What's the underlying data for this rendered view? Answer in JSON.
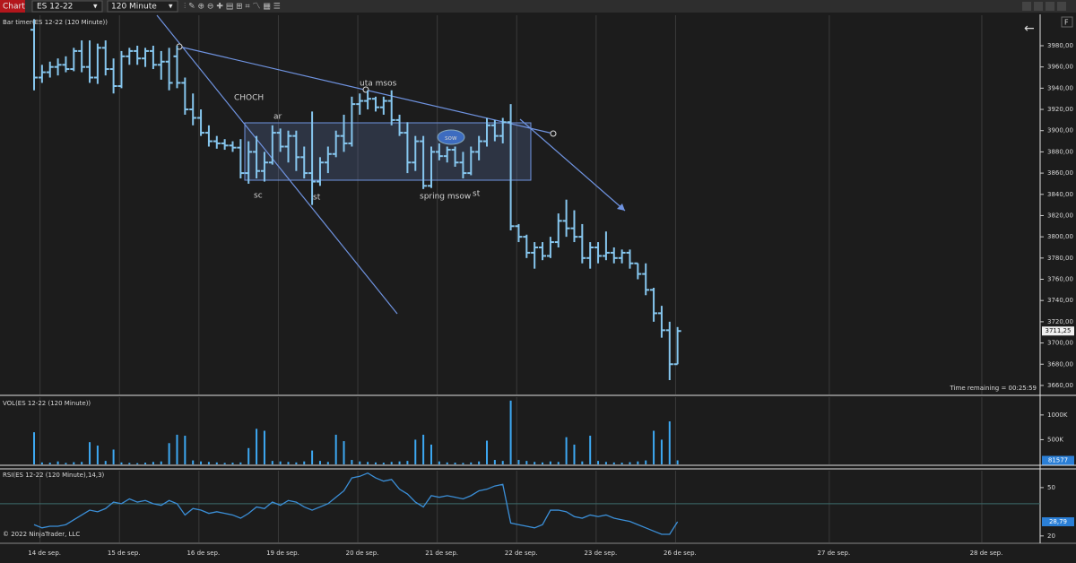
{
  "toolbar": {
    "menu": "Chart",
    "instrument": "ES 12-22",
    "interval": "120 Minute"
  },
  "chart_data": [
    {
      "type": "ohlc",
      "title": "Bar timer(ES 12-22 (120 Minute))",
      "color": "#86c6ee",
      "grid": "x",
      "ohlc": [
        [
          3995,
          4005,
          3938,
          3950
        ],
        [
          3950,
          3962,
          3945,
          3955
        ],
        [
          3955,
          3965,
          3950,
          3960
        ],
        [
          3960,
          3968,
          3952,
          3962
        ],
        [
          3962,
          3970,
          3955,
          3958
        ],
        [
          3958,
          3978,
          3956,
          3975
        ],
        [
          3975,
          3985,
          3955,
          3960
        ],
        [
          3960,
          3985,
          3945,
          3950
        ],
        [
          3950,
          3982,
          3944,
          3978
        ],
        [
          3978,
          3985,
          3952,
          3958
        ],
        [
          3958,
          3968,
          3935,
          3942
        ],
        [
          3942,
          3975,
          3940,
          3970
        ],
        [
          3970,
          3978,
          3962,
          3975
        ],
        [
          3975,
          3980,
          3962,
          3968
        ],
        [
          3968,
          3978,
          3960,
          3975
        ],
        [
          3975,
          3980,
          3958,
          3962
        ],
        [
          3962,
          3975,
          3948,
          3965
        ],
        [
          3965,
          3978,
          3938,
          3945
        ],
        [
          3970,
          3980,
          3940,
          3945
        ],
        [
          3945,
          3950,
          3915,
          3920
        ],
        [
          3920,
          3935,
          3905,
          3912
        ],
        [
          3912,
          3920,
          3895,
          3898
        ],
        [
          3898,
          3905,
          3885,
          3890
        ],
        [
          3890,
          3895,
          3883,
          3888
        ],
        [
          3888,
          3892,
          3882,
          3886
        ],
        [
          3886,
          3890,
          3880,
          3884
        ],
        [
          3884,
          3892,
          3855,
          3860
        ],
        [
          3860,
          3890,
          3850,
          3880
        ],
        [
          3880,
          3895,
          3855,
          3862
        ],
        [
          3862,
          3880,
          3852,
          3870
        ],
        [
          3870,
          3905,
          3868,
          3898
        ],
        [
          3898,
          3902,
          3880,
          3885
        ],
        [
          3885,
          3900,
          3870,
          3895
        ],
        [
          3895,
          3900,
          3862,
          3875
        ],
        [
          3875,
          3885,
          3855,
          3860
        ],
        [
          3860,
          3918,
          3830,
          3852
        ],
        [
          3852,
          3875,
          3848,
          3870
        ],
        [
          3870,
          3885,
          3860,
          3878
        ],
        [
          3878,
          3900,
          3875,
          3895
        ],
        [
          3895,
          3915,
          3880,
          3888
        ],
        [
          3888,
          3932,
          3885,
          3925
        ],
        [
          3925,
          3935,
          3915,
          3928
        ],
        [
          3928,
          3938,
          3920,
          3930
        ],
        [
          3930,
          3932,
          3918,
          3922
        ],
        [
          3922,
          3932,
          3915,
          3928
        ],
        [
          3928,
          3938,
          3905,
          3910
        ],
        [
          3910,
          3915,
          3895,
          3898
        ],
        [
          3898,
          3908,
          3860,
          3870
        ],
        [
          3870,
          3895,
          3862,
          3890
        ],
        [
          3890,
          3895,
          3845,
          3848
        ],
        [
          3848,
          3885,
          3846,
          3880
        ],
        [
          3880,
          3888,
          3872,
          3876
        ],
        [
          3876,
          3885,
          3870,
          3882
        ],
        [
          3882,
          3885,
          3866,
          3870
        ],
        [
          3870,
          3880,
          3855,
          3860
        ],
        [
          3860,
          3885,
          3858,
          3880
        ],
        [
          3880,
          3895,
          3872,
          3890
        ],
        [
          3890,
          3912,
          3885,
          3905
        ],
        [
          3905,
          3910,
          3890,
          3895
        ],
        [
          3895,
          3912,
          3888,
          3908
        ],
        [
          3908,
          3925,
          3806,
          3810
        ],
        [
          3810,
          3812,
          3795,
          3800
        ],
        [
          3800,
          3802,
          3780,
          3785
        ],
        [
          3785,
          3795,
          3770,
          3790
        ],
        [
          3790,
          3795,
          3778,
          3782
        ],
        [
          3782,
          3800,
          3780,
          3795
        ],
        [
          3795,
          3822,
          3790,
          3815
        ],
        [
          3815,
          3835,
          3800,
          3808
        ],
        [
          3808,
          3825,
          3795,
          3800
        ],
        [
          3800,
          3812,
          3775,
          3780
        ],
        [
          3780,
          3795,
          3770,
          3790
        ],
        [
          3790,
          3795,
          3775,
          3782
        ],
        [
          3782,
          3805,
          3778,
          3785
        ],
        [
          3785,
          3790,
          3775,
          3780
        ],
        [
          3780,
          3788,
          3775,
          3785
        ],
        [
          3785,
          3788,
          3770,
          3775
        ],
        [
          3775,
          3775,
          3760,
          3765
        ],
        [
          3765,
          3775,
          3745,
          3750
        ],
        [
          3750,
          3752,
          3720,
          3728
        ],
        [
          3728,
          3735,
          3705,
          3712
        ],
        [
          3712,
          3720,
          3665,
          3680
        ],
        [
          3680,
          3715,
          3680,
          3711.25
        ]
      ],
      "ylim": [
        3651.5,
        4008.7
      ],
      "yticks": [
        {
          "value": 3660,
          "label": "3660,00"
        },
        {
          "value": 3680,
          "label": "3680,00"
        },
        {
          "value": 3700,
          "label": "3700,00"
        },
        {
          "value": 3720,
          "label": "3720,00"
        },
        {
          "value": 3740,
          "label": "3740,00"
        },
        {
          "value": 3760,
          "label": "3760,00"
        },
        {
          "value": 3780,
          "label": "3780,00"
        },
        {
          "value": 3800,
          "label": "3800,00"
        },
        {
          "value": 3820,
          "label": "3820,00"
        },
        {
          "value": 3840,
          "label": "3840,00"
        },
        {
          "value": 3860,
          "label": "3860,00"
        },
        {
          "value": 3880,
          "label": "3880,00"
        },
        {
          "value": 3900,
          "label": "3900,00"
        },
        {
          "value": 3920,
          "label": "3920,00"
        },
        {
          "value": 3940,
          "label": "3940,00"
        },
        {
          "value": 3960,
          "label": "3960,00"
        },
        {
          "value": 3980,
          "label": "3980,00"
        }
      ],
      "last_price": {
        "value": 3711.25,
        "label": "3711,25"
      },
      "xlim": [
        -4.29,
        126.64
      ],
      "xticks": [
        {
          "value": 0.75,
          "label": "14 de sep."
        },
        {
          "value": 10.75,
          "label": "15 de sep."
        },
        {
          "value": 20.75,
          "label": "16 de sep."
        },
        {
          "value": 30.75,
          "label": "19 de sep."
        },
        {
          "value": 40.75,
          "label": "20 de sep."
        },
        {
          "value": 50.75,
          "label": "21 de sep."
        },
        {
          "value": 60.75,
          "label": "22 de sep."
        },
        {
          "value": 70.75,
          "label": "23 de sep."
        },
        {
          "value": 80.75,
          "label": "26 de sep."
        },
        {
          "value": 100.1,
          "label": "27 de sep."
        },
        {
          "value": 119.3,
          "label": "28 de sep."
        }
      ],
      "annotations": [
        "CHOCH",
        "ar",
        "sc",
        "st",
        "uta msos",
        "sow",
        "spring msow",
        "st"
      ],
      "time_remaining": "Time remaining = 00:25:59",
      "copyright": "© 2022 NinjaTrader, LLC"
    },
    {
      "type": "bar",
      "title": "VOL(ES 12-22 (120 Minute))",
      "color": "#3da8f2",
      "values": [
        650000,
        40000,
        35000,
        60000,
        30000,
        45000,
        50000,
        450000,
        380000,
        70000,
        300000,
        40000,
        30000,
        25000,
        35000,
        50000,
        60000,
        430000,
        600000,
        580000,
        80000,
        60000,
        50000,
        40000,
        30000,
        35000,
        40000,
        330000,
        720000,
        680000,
        70000,
        60000,
        50000,
        40000,
        60000,
        280000,
        70000,
        50000,
        600000,
        470000,
        90000,
        60000,
        50000,
        40000,
        35000,
        50000,
        60000,
        70000,
        500000,
        600000,
        400000,
        60000,
        40000,
        35000,
        30000,
        40000,
        60000,
        480000,
        90000,
        70000,
        1290000,
        90000,
        70000,
        50000,
        40000,
        60000,
        50000,
        550000,
        400000,
        60000,
        580000,
        70000,
        50000,
        40000,
        35000,
        45000,
        60000,
        80000,
        680000,
        500000,
        870000,
        81577
      ],
      "ylim": [
        0,
        1360000
      ],
      "yticks": [
        {
          "value": 500000,
          "label": "500K"
        },
        {
          "value": 1000000,
          "label": "1000K"
        }
      ]
    },
    {
      "type": "line",
      "title": "RSI(ES 12-22 (120 Minute),14,3)",
      "color": "#3b8fd8",
      "values": [
        27,
        25,
        26,
        26,
        27,
        30,
        33,
        36,
        35,
        37,
        41,
        40,
        43,
        41,
        42,
        40,
        39,
        42,
        40,
        33,
        37,
        36,
        34,
        35,
        34,
        33,
        31,
        34,
        38,
        37,
        41,
        39,
        42,
        41,
        38,
        36,
        38,
        40,
        44,
        48,
        56,
        57,
        59,
        56,
        54,
        55,
        49,
        46,
        41,
        38,
        45,
        44,
        45,
        44,
        43,
        45,
        48,
        49,
        51,
        52,
        28,
        27,
        26,
        25,
        27,
        36,
        36,
        35,
        32,
        31,
        33,
        32,
        33,
        31,
        30,
        29,
        27,
        25,
        23,
        21,
        21,
        28.79
      ],
      "last_value": {
        "value": 28.79,
        "label": "28,79"
      },
      "levels": [
        40
      ],
      "ylim": [
        16,
        60.5
      ],
      "yticks": [
        20,
        50
      ]
    }
  ]
}
